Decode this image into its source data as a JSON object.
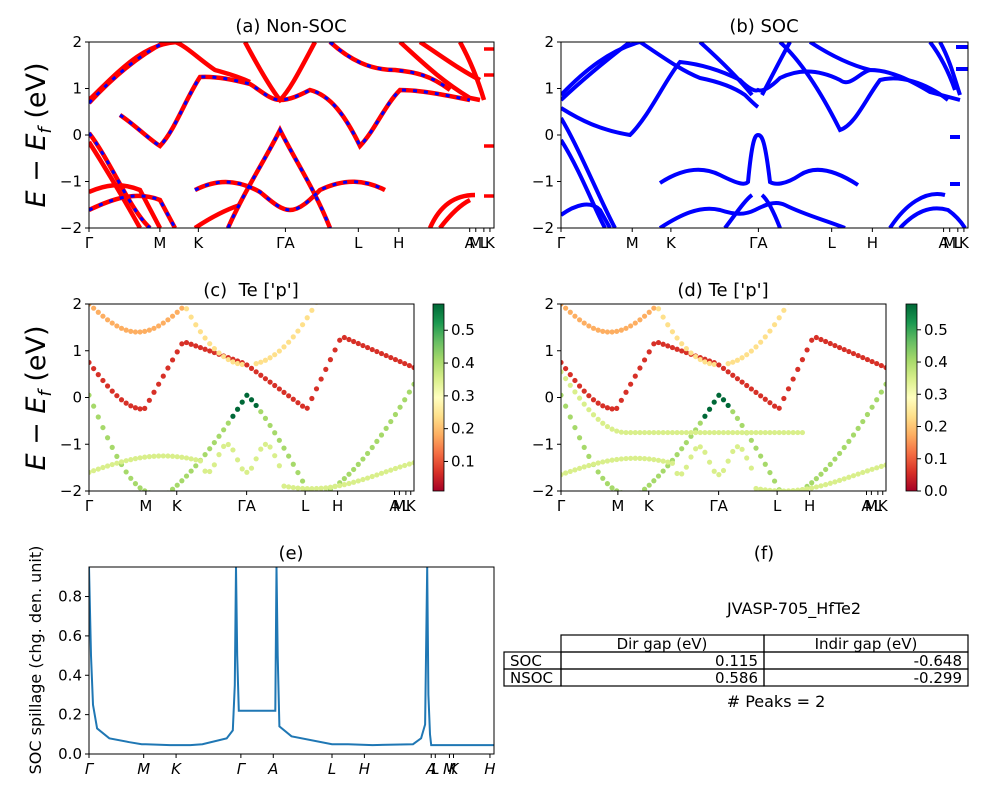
{
  "figure_label": "JVASP-705_HfTe2",
  "chart_data": [
    {
      "id": "a",
      "type": "line",
      "title": "(a) Non-SOC",
      "ylabel": "E − E_f (eV)",
      "ylim": [
        -2,
        2
      ],
      "yticks": [
        -2,
        -1,
        0,
        1,
        2
      ],
      "xticks": [
        "Γ",
        "M",
        "K",
        "ΓA",
        "L",
        "H",
        "A",
        "M",
        "L",
        "K"
      ],
      "series_colors": {
        "bands": "#ff0000",
        "overlay": "#0000ff"
      },
      "bands": "band-structure curves (non spin-orbit) overlaid with dashed SOC bands",
      "isolated_marks": [
        1.8,
        1.25,
        -0.22,
        -1.3
      ]
    },
    {
      "id": "b",
      "type": "line",
      "title": "(b) SOC",
      "ylim": [
        -2,
        2
      ],
      "yticks": [
        -2,
        -1,
        0,
        1,
        2
      ],
      "xticks": [
        "Γ",
        "M",
        "K",
        "ΓA",
        "L",
        "H",
        "A",
        "M",
        "L",
        "K"
      ],
      "series_colors": {
        "bands": "#0000ff"
      },
      "isolated_marks": [
        1.85,
        1.4,
        -0.05,
        -1.05,
        -1.55
      ]
    },
    {
      "id": "c",
      "type": "scatter",
      "title": "(c)  Te ['p']",
      "ylabel": "E − E_f (eV)",
      "ylim": [
        -2,
        2
      ],
      "yticks": [
        -2,
        -1,
        0,
        1,
        2
      ],
      "xticks": [
        "Γ",
        "M",
        "K",
        "ΓA",
        "L",
        "H",
        "A",
        "M",
        "L",
        "K"
      ],
      "colorbar": {
        "cmap": "RdYlGn",
        "ticks": [
          "0.1",
          "0.2",
          "0.3",
          "0.4",
          "0.5"
        ],
        "range": [
          0.01,
          0.58
        ]
      }
    },
    {
      "id": "d",
      "type": "scatter",
      "title": "(d) Te ['p']",
      "ylim": [
        -2,
        2
      ],
      "yticks": [
        -2,
        -1,
        0,
        1,
        2
      ],
      "xticks": [
        "Γ",
        "M",
        "K",
        "ΓA",
        "L",
        "H",
        "A",
        "M",
        "L",
        "K"
      ],
      "colorbar": {
        "cmap": "RdYlGn",
        "ticks": [
          "0.0",
          "0.1",
          "0.2",
          "0.3",
          "0.4",
          "0.5"
        ],
        "range": [
          0.0,
          0.58
        ]
      }
    },
    {
      "id": "e",
      "type": "line",
      "title": "(e)",
      "ylabel": "SOC spillage (chg. den. unit)",
      "ylim": [
        0,
        0.95
      ],
      "yticks": [
        "0.0",
        "0.2",
        "0.4",
        "0.6",
        "0.8"
      ],
      "xticks": [
        "Γ",
        "M",
        "K",
        "Γ",
        "A",
        "L",
        "H",
        "A",
        "L",
        "M",
        "K",
        "H"
      ],
      "x": [
        0,
        0.005,
        0.01,
        0.02,
        0.05,
        0.1,
        0.13,
        0.135,
        0.14,
        0.2,
        0.25,
        0.28,
        0.34,
        0.355,
        0.36,
        0.363,
        0.366,
        0.37,
        0.45,
        0.46,
        0.463,
        0.466,
        0.47,
        0.5,
        0.6,
        0.62,
        0.64,
        0.7,
        0.8,
        0.82,
        0.83,
        0.835,
        0.838,
        0.842,
        0.845,
        0.85,
        0.9,
        1.0
      ],
      "values": [
        0.95,
        0.5,
        0.25,
        0.13,
        0.08,
        0.06,
        0.05,
        0.05,
        0.05,
        0.045,
        0.045,
        0.05,
        0.08,
        0.12,
        0.35,
        0.95,
        0.5,
        0.22,
        0.22,
        0.22,
        0.95,
        0.5,
        0.14,
        0.09,
        0.05,
        0.05,
        0.05,
        0.045,
        0.05,
        0.08,
        0.15,
        0.95,
        0.3,
        0.1,
        0.045,
        0.045,
        0.045,
        0.045
      ],
      "line_color": "#1f77b4"
    },
    {
      "id": "f",
      "type": "table",
      "title": "(f)",
      "caption": "JVASP-705_HfTe2",
      "columns": [
        "Dir gap (eV)",
        "Indir gap (eV)"
      ],
      "rows": [
        {
          "label": "SOC",
          "values": [
            "0.115",
            "-0.648"
          ]
        },
        {
          "label": "NSOC",
          "values": [
            "0.586",
            "-0.299"
          ]
        }
      ],
      "footer": "# Peaks = 2"
    }
  ]
}
